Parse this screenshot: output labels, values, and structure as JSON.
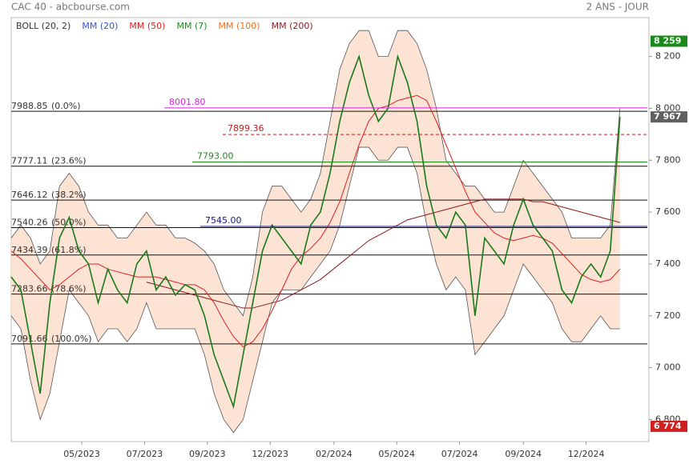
{
  "header": {
    "left": "CAC 40 - abcbourse.com",
    "right": "2 ANS - JOUR"
  },
  "chart_data": {
    "type": "line",
    "legend": [
      {
        "name": "BOLL (20, 2)",
        "color": "#333333"
      },
      {
        "name": "MM (20)",
        "color": "#3355dd"
      },
      {
        "name": "MM (50)",
        "color": "#e02020"
      },
      {
        "name": "MM (7)",
        "color": "#1a8a1a"
      },
      {
        "name": "MM (100)",
        "color": "#f07020"
      },
      {
        "name": "MM (200)",
        "color": "#8b1a1a"
      }
    ],
    "xlim": [
      0,
      66
    ],
    "xticks": [
      {
        "value": 7.3,
        "label": "05/2023"
      },
      {
        "value": 13.8,
        "label": "07/2023"
      },
      {
        "value": 20.3,
        "label": "09/2023"
      },
      {
        "value": 26.8,
        "label": "12/2023"
      },
      {
        "value": 33.4,
        "label": "02/2024"
      },
      {
        "value": 39.9,
        "label": "05/2024"
      },
      {
        "value": 46.4,
        "label": "07/2024"
      },
      {
        "value": 53.0,
        "label": "09/2024"
      },
      {
        "value": 59.5,
        "label": "12/2024"
      }
    ],
    "ylim": [
      6715,
      8350
    ],
    "yticks": [
      {
        "value": 6800,
        "label": "6 800"
      },
      {
        "value": 7000,
        "label": "7 000"
      },
      {
        "value": 7200,
        "label": "7 200"
      },
      {
        "value": 7400,
        "label": "7 400"
      },
      {
        "value": 7600,
        "label": "7 600"
      },
      {
        "value": 7800,
        "label": "7 800"
      },
      {
        "value": 8000,
        "label": "8 000"
      },
      {
        "value": 8200,
        "label": "8 200"
      }
    ],
    "band": {
      "color": "#fde3d4",
      "line_color": "#555555",
      "upper": [
        7500,
        7550,
        7500,
        7400,
        7450,
        7700,
        7750,
        7700,
        7600,
        7550,
        7550,
        7500,
        7500,
        7550,
        7600,
        7550,
        7550,
        7500,
        7500,
        7480,
        7450,
        7400,
        7300,
        7250,
        7200,
        7350,
        7600,
        7700,
        7700,
        7650,
        7600,
        7650,
        7750,
        7950,
        8150,
        8250,
        8300,
        8300,
        8200,
        8200,
        8300,
        8300,
        8250,
        8150,
        8000,
        7800,
        7750,
        7700,
        7700,
        7650,
        7600,
        7600,
        7700,
        7800,
        7750,
        7700,
        7650,
        7600,
        7500,
        7500,
        7500,
        7500,
        7550,
        8000
      ],
      "lower": [
        7200,
        7150,
        6950,
        6800,
        6900,
        7100,
        7300,
        7250,
        7200,
        7100,
        7150,
        7150,
        7100,
        7150,
        7250,
        7150,
        7150,
        7150,
        7150,
        7150,
        7050,
        6900,
        6800,
        6750,
        6800,
        6950,
        7100,
        7250,
        7300,
        7300,
        7300,
        7350,
        7400,
        7450,
        7550,
        7700,
        7850,
        7850,
        7800,
        7800,
        7850,
        7850,
        7750,
        7550,
        7400,
        7300,
        7350,
        7300,
        7050,
        7100,
        7150,
        7200,
        7300,
        7400,
        7350,
        7300,
        7250,
        7150,
        7100,
        7100,
        7150,
        7200,
        7150,
        7150
      ]
    },
    "series": [
      {
        "name": "MM (200)",
        "color": "#8b1a1a",
        "values": [
          null,
          null,
          null,
          null,
          null,
          null,
          null,
          null,
          null,
          null,
          null,
          null,
          null,
          null,
          7330,
          7320,
          7310,
          7300,
          7290,
          7280,
          7270,
          7260,
          7250,
          7240,
          7230,
          7230,
          7240,
          7250,
          7260,
          7280,
          7300,
          7320,
          7340,
          7370,
          7400,
          7430,
          7460,
          7490,
          7510,
          7530,
          7550,
          7570,
          7580,
          7590,
          7600,
          7610,
          7620,
          7630,
          7640,
          7650,
          7650,
          7650,
          7650,
          7650,
          7640,
          7640,
          7630,
          7620,
          7610,
          7600,
          7590,
          7580,
          7570,
          7560
        ]
      },
      {
        "name": "MM (50)",
        "color": "#e02020",
        "values": [
          7450,
          7420,
          7380,
          7340,
          7300,
          7320,
          7350,
          7380,
          7400,
          7400,
          7380,
          7370,
          7360,
          7350,
          7350,
          7350,
          7340,
          7330,
          7320,
          7320,
          7300,
          7250,
          7180,
          7120,
          7080,
          7100,
          7150,
          7220,
          7300,
          7380,
          7430,
          7460,
          7500,
          7560,
          7640,
          7750,
          7860,
          7950,
          8000,
          8010,
          8030,
          8040,
          8050,
          8030,
          7950,
          7860,
          7770,
          7680,
          7600,
          7560,
          7520,
          7500,
          7490,
          7500,
          7510,
          7500,
          7480,
          7440,
          7400,
          7360,
          7340,
          7330,
          7340,
          7380
        ]
      },
      {
        "name": "CAC 40",
        "color": "#1a7a1a",
        "values": [
          7350,
          7300,
          7100,
          6900,
          7250,
          7500,
          7580,
          7450,
          7400,
          7250,
          7380,
          7300,
          7250,
          7400,
          7450,
          7300,
          7350,
          7280,
          7320,
          7300,
          7200,
          7050,
          6950,
          6850,
          7050,
          7250,
          7450,
          7550,
          7500,
          7450,
          7400,
          7550,
          7600,
          7750,
          7950,
          8100,
          8200,
          8050,
          7950,
          8000,
          8200,
          8100,
          7950,
          7700,
          7550,
          7500,
          7600,
          7550,
          7200,
          7500,
          7450,
          7400,
          7550,
          7650,
          7550,
          7500,
          7450,
          7300,
          7250,
          7350,
          7400,
          7350,
          7450,
          7967
        ]
      }
    ],
    "fib_levels": [
      {
        "value": 7988.85,
        "pct": "(0.0%)"
      },
      {
        "value": 7777.11,
        "pct": "(23.6%)"
      },
      {
        "value": 7646.12,
        "pct": "(38.2%)"
      },
      {
        "value": 7540.26,
        "pct": "(50.0%)"
      },
      {
        "value": 7434.39,
        "pct": "(61.8%)"
      },
      {
        "value": 7283.66,
        "pct": "(78.6%)"
      },
      {
        "value": 7091.66,
        "pct": "(100.0%)"
      }
    ],
    "levels": [
      {
        "value": 8001.8,
        "label": "8001.80",
        "color": "#e020e0",
        "style": "solid"
      },
      {
        "value": 7899.36,
        "label": "7899.36",
        "color": "#c02020",
        "style": "dashed"
      },
      {
        "value": 7793.0,
        "label": "7793.00",
        "color": "#1a8a1a",
        "style": "solid"
      },
      {
        "value": 7545.0,
        "label": "7545.00",
        "color": "#1a1a80",
        "style": "solid"
      }
    ],
    "price_markers": [
      {
        "value": 8259,
        "label": "8 259",
        "color": "#1a8a1a"
      },
      {
        "value": 7967,
        "label": "7 967",
        "color": "#606060"
      },
      {
        "value": 6774,
        "label": "6 774",
        "color": "#d02020"
      }
    ]
  }
}
